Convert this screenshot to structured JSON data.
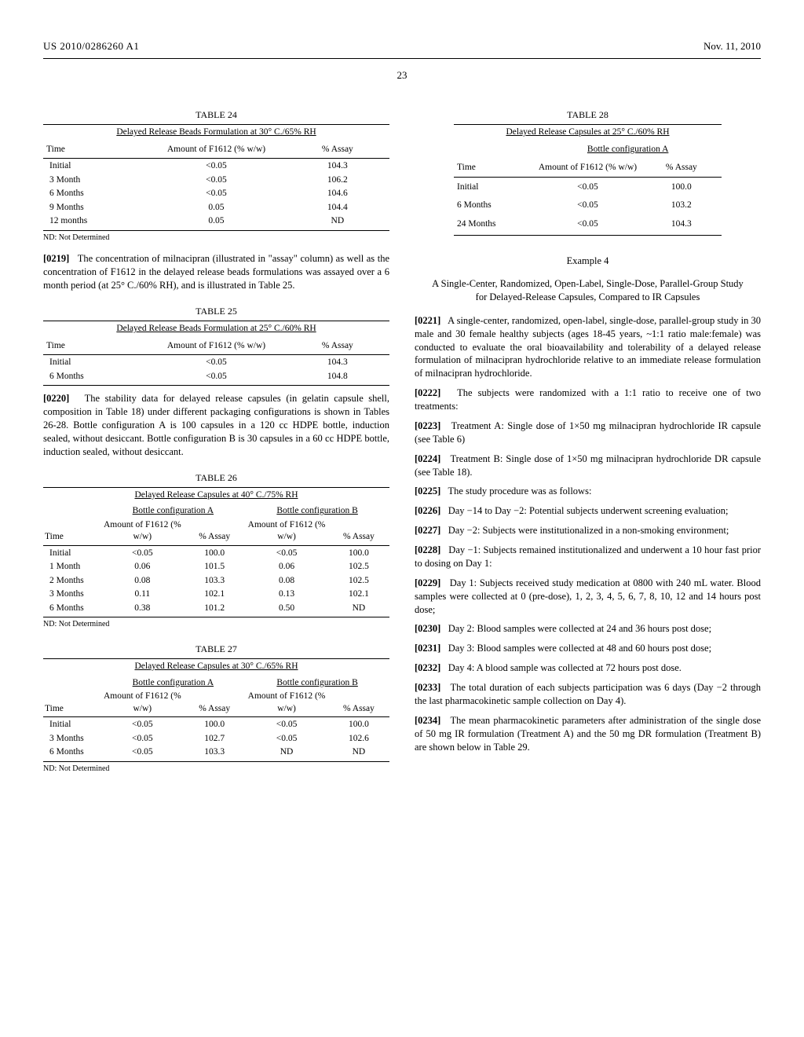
{
  "header": {
    "publication": "US 2010/0286260 A1",
    "date": "Nov. 11, 2010",
    "page_number": "23"
  },
  "left": {
    "table24": {
      "caption": "TABLE 24",
      "title": "Delayed Release Beads Formulation at 30° C./65% RH",
      "cols": [
        "Time",
        "Amount of F1612 (% w/w)",
        "% Assay"
      ],
      "rows": [
        [
          "Initial",
          "<0.05",
          "104.3"
        ],
        [
          "3 Month",
          "<0.05",
          "106.2"
        ],
        [
          "6 Months",
          "<0.05",
          "104.6"
        ],
        [
          "9 Months",
          "0.05",
          "104.4"
        ],
        [
          "12 months",
          "0.05",
          "ND"
        ]
      ],
      "footnote": "ND: Not Determined"
    },
    "p0219": {
      "num": "[0219]",
      "text": "The concentration of milnacipran (illustrated in \"assay\" column) as well as the concentration of F1612 in the delayed release beads formulations was assayed over a 6 month period (at 25° C./60% RH), and is illustrated in Table 25."
    },
    "table25": {
      "caption": "TABLE 25",
      "title": "Delayed Release Beads Formulation at 25° C./60% RH",
      "cols": [
        "Time",
        "Amount of F1612 (% w/w)",
        "% Assay"
      ],
      "rows": [
        [
          "Initial",
          "<0.05",
          "104.3"
        ],
        [
          "6 Months",
          "<0.05",
          "104.8"
        ]
      ]
    },
    "p0220": {
      "num": "[0220]",
      "text": "The stability data for delayed release capsules (in gelatin capsule shell, composition in Table 18) under different packaging configurations is shown in Tables 26-28. Bottle configuration A is 100 capsules in a 120 cc HDPE bottle, induction sealed, without desiccant. Bottle configuration B is 30 capsules in a 60 cc HDPE bottle, induction sealed, without desiccant."
    },
    "table26": {
      "caption": "TABLE 26",
      "title": "Delayed Release Capsules at 40° C./75% RH",
      "groupA": "Bottle configuration A",
      "groupB": "Bottle configuration B",
      "cols": [
        "Time",
        "Amount of F1612 (% w/w)",
        "% Assay",
        "Amount of F1612 (% w/w)",
        "% Assay"
      ],
      "rows": [
        [
          "Initial",
          "<0.05",
          "100.0",
          "<0.05",
          "100.0"
        ],
        [
          "1 Month",
          "0.06",
          "101.5",
          "0.06",
          "102.5"
        ],
        [
          "2 Months",
          "0.08",
          "103.3",
          "0.08",
          "102.5"
        ],
        [
          "3 Months",
          "0.11",
          "102.1",
          "0.13",
          "102.1"
        ],
        [
          "6 Months",
          "0.38",
          "101.2",
          "0.50",
          "ND"
        ]
      ],
      "footnote": "ND: Not Determined"
    },
    "table27": {
      "caption": "TABLE 27",
      "title": "Delayed Release Capsules at 30° C./65% RH",
      "groupA": "Bottle configuration A",
      "groupB": "Bottle configuration B",
      "cols": [
        "Time",
        "Amount of F1612 (% w/w)",
        "% Assay",
        "Amount of F1612 (% w/w)",
        "% Assay"
      ],
      "rows": [
        [
          "Initial",
          "<0.05",
          "100.0",
          "<0.05",
          "100.0"
        ],
        [
          "3 Months",
          "<0.05",
          "102.7",
          "<0.05",
          "102.6"
        ],
        [
          "6 Months",
          "<0.05",
          "103.3",
          "ND",
          "ND"
        ]
      ],
      "footnote": "ND: Not Determined"
    }
  },
  "right": {
    "table28": {
      "caption": "TABLE 28",
      "title": "Delayed Release Capsules at 25° C./60% RH",
      "groupA": "Bottle configuration A",
      "cols": [
        "Time",
        "Amount of F1612 (% w/w)",
        "% Assay"
      ],
      "rows": [
        [
          "Initial",
          "<0.05",
          "100.0"
        ],
        [
          "6 Months",
          "<0.05",
          "103.2"
        ],
        [
          "24 Months",
          "<0.05",
          "104.3"
        ]
      ]
    },
    "example4": {
      "title": "Example 4",
      "subtitle": "A Single-Center, Randomized, Open-Label, Single-Dose, Parallel-Group Study for Delayed-Release Capsules, Compared to IR Capsules"
    },
    "paras": [
      {
        "num": "[0221]",
        "text": "A single-center, randomized, open-label, single-dose, parallel-group study in 30 male and 30 female healthy subjects (ages 18-45 years, ~1:1 ratio male:female) was conducted to evaluate the oral bioavailability and tolerability of a delayed release formulation of milnacipran hydrochloride relative to an immediate release formulation of milnacipran hydrochloride."
      },
      {
        "num": "[0222]",
        "text": "The subjects were randomized with a 1:1 ratio to receive one of two treatments:"
      },
      {
        "num": "[0223]",
        "text": "Treatment A: Single dose of 1×50 mg milnacipran hydrochloride IR capsule (see Table 6)"
      },
      {
        "num": "[0224]",
        "text": "Treatment B: Single dose of 1×50 mg milnacipran hydrochloride DR capsule (see Table 18)."
      },
      {
        "num": "[0225]",
        "text": "The study procedure was as follows:"
      },
      {
        "num": "[0226]",
        "text": "Day −14 to Day −2: Potential subjects underwent screening evaluation;"
      },
      {
        "num": "[0227]",
        "text": "Day −2: Subjects were institutionalized in a non-smoking environment;"
      },
      {
        "num": "[0228]",
        "text": "Day −1: Subjects remained institutionalized and underwent a 10 hour fast prior to dosing on Day 1:"
      },
      {
        "num": "[0229]",
        "text": "Day 1: Subjects received study medication at 0800 with 240 mL water. Blood samples were collected at 0 (pre-dose), 1, 2, 3, 4, 5, 6, 7, 8, 10, 12 and 14 hours post dose;"
      },
      {
        "num": "[0230]",
        "text": "Day 2: Blood samples were collected at 24 and 36 hours post dose;"
      },
      {
        "num": "[0231]",
        "text": "Day 3: Blood samples were collected at 48 and 60 hours post dose;"
      },
      {
        "num": "[0232]",
        "text": "Day 4: A blood sample was collected at 72 hours post dose."
      },
      {
        "num": "[0233]",
        "text": "The total duration of each subjects participation was 6 days (Day −2 through the last pharmacokinetic sample collection on Day 4)."
      },
      {
        "num": "[0234]",
        "text": "The mean pharmacokinetic parameters after administration of the single dose of 50 mg IR formulation (Treatment A) and the 50 mg DR formulation (Treatment B) are shown below in Table 29."
      }
    ]
  }
}
